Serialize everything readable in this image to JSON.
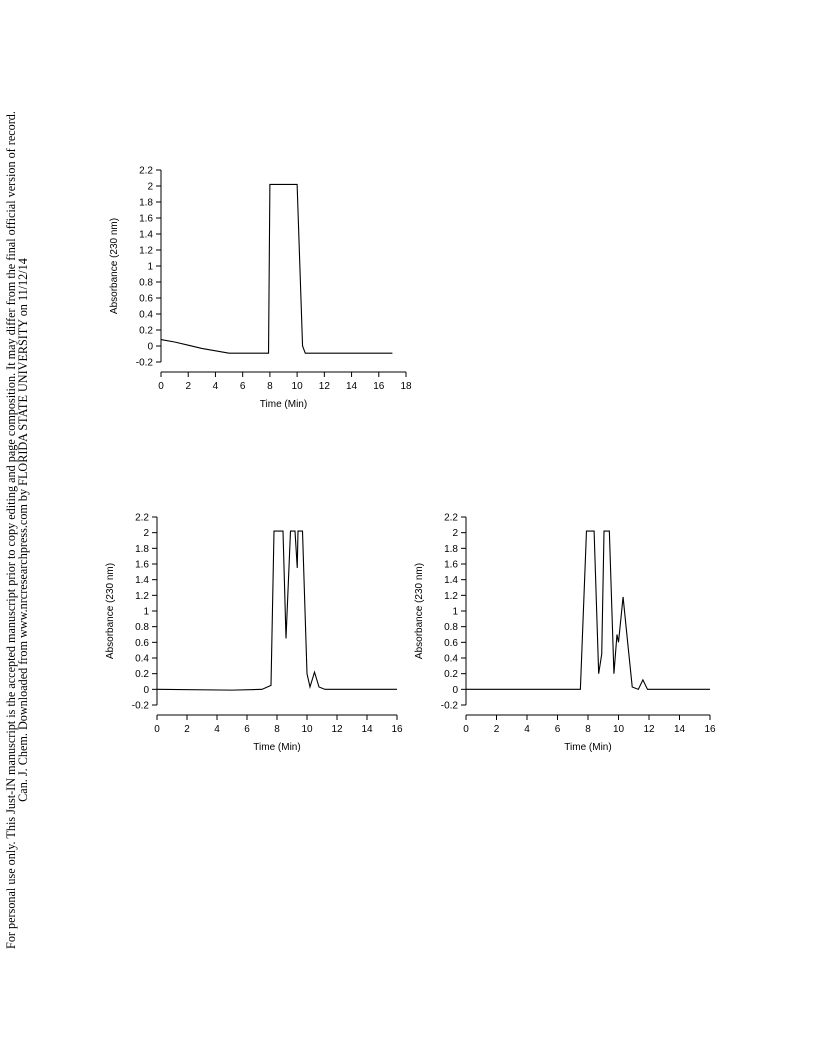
{
  "watermark": [
    "Can. J. Chem. Downloaded from www.nrcresearchpress.com by FLORIDA STATE UNIVERSITY on 11/12/14",
    "For personal use only. This Just-IN manuscript is the accepted manuscript prior to copy editing and page composition. It may differ from the final official version of record."
  ],
  "chart_data": [
    {
      "type": "line",
      "x_label": "Time (Min)",
      "y_label": "Absorbance (230 nm)",
      "series": [
        {
          "color": "#000000",
          "x": [
            0,
            1,
            2,
            3,
            4,
            5,
            6,
            7.9,
            8,
            10,
            10.4,
            10.6,
            17
          ],
          "values": [
            0.08,
            0.05,
            0.01,
            -0.03,
            -0.06,
            -0.09,
            -0.09,
            -0.09,
            2.02,
            2.02,
            0,
            -0.09,
            -0.09
          ]
        }
      ],
      "xlim": [
        0,
        18
      ],
      "xticks": [
        0,
        2,
        4,
        6,
        8,
        10,
        12,
        14,
        16,
        18
      ],
      "ylim": [
        -0.2,
        2.2
      ],
      "yticks": [
        -0.2,
        0,
        0.2,
        0.4,
        0.6,
        0.8,
        1,
        1.2,
        1.4,
        1.6,
        1.8,
        2,
        2.2
      ]
    },
    {
      "type": "line",
      "x_label": "Time (Min)",
      "y_label": "Absorbance (230 nm)",
      "series": [
        {
          "color": "#000000",
          "x": [
            0,
            5,
            7,
            7.6,
            7.8,
            8.4,
            8.6,
            8.9,
            9.2,
            9.35,
            9.4,
            9.7,
            10,
            10.2,
            10.5,
            10.8,
            11.2,
            16
          ],
          "values": [
            0,
            -0.01,
            0,
            0.05,
            2.02,
            2.02,
            0.65,
            2.02,
            2.02,
            1.55,
            2.02,
            2.02,
            0.2,
            0.03,
            0.22,
            0.03,
            0,
            0
          ]
        }
      ],
      "xlim": [
        0,
        16
      ],
      "xticks": [
        0,
        2,
        4,
        6,
        8,
        10,
        12,
        14,
        16
      ],
      "ylim": [
        -0.2,
        2.2
      ],
      "yticks": [
        -0.2,
        0,
        0.2,
        0.4,
        0.6,
        0.8,
        1,
        1.2,
        1.4,
        1.6,
        1.8,
        2,
        2.2
      ]
    },
    {
      "type": "line",
      "x_label": "Time (Min)",
      "y_label": "Absorbance (230 nm)",
      "series": [
        {
          "color": "#000000",
          "x": [
            0,
            7.5,
            7.9,
            8.4,
            8.7,
            8.9,
            9.05,
            9.4,
            9.7,
            9.9,
            10,
            10.3,
            10.6,
            10.9,
            11.3,
            11.6,
            11.9,
            16
          ],
          "values": [
            0,
            0,
            2.02,
            2.02,
            0.2,
            0.45,
            2.02,
            2.02,
            0.2,
            0.7,
            0.6,
            1.18,
            0.6,
            0.03,
            0,
            0.12,
            0,
            0
          ]
        }
      ],
      "xlim": [
        0,
        16
      ],
      "xticks": [
        0,
        2,
        4,
        6,
        8,
        10,
        12,
        14,
        16
      ],
      "ylim": [
        -0.2,
        2.2
      ],
      "yticks": [
        -0.2,
        0,
        0.2,
        0.4,
        0.6,
        0.8,
        1,
        1.2,
        1.4,
        1.6,
        1.8,
        2,
        2.2
      ]
    }
  ]
}
